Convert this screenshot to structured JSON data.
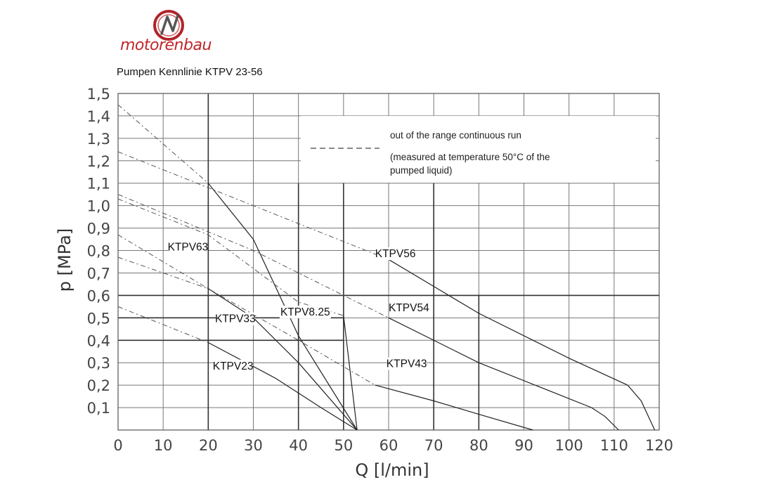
{
  "logo": {
    "text": "motorenbau",
    "tagline": ""
  },
  "chart_data": {
    "type": "line",
    "title": "Pumpen Kennlinie KTPV 23-56",
    "xlabel": "Q  [l/min]",
    "ylabel": "p  [MPa]",
    "xlim": [
      0,
      120
    ],
    "ylim": [
      0,
      1.5
    ],
    "x_ticks": [
      "0",
      "10",
      "20",
      "30",
      "40",
      "50",
      "60",
      "70",
      "80",
      "90",
      "100",
      "110",
      "120"
    ],
    "y_ticks": [
      "0,1",
      "0,2",
      "0,3",
      "0,4",
      "0,5",
      "0,6",
      "0,7",
      "0,8",
      "0,9",
      "1,0",
      "1,1",
      "1,2",
      "1,3",
      "1,4",
      "1,5"
    ],
    "grid": true,
    "legend": {
      "line_style": "dashed",
      "text1": "out of the range continuous run",
      "text2": "(measured at temperature 50°C of the",
      "text3": "pumped liquid)"
    },
    "series": [
      {
        "name": "KTPV23",
        "label_at": [
          25.5,
          0.27
        ],
        "dashed": [
          [
            0,
            0.55
          ],
          [
            20,
            0.39
          ]
        ],
        "solid": [
          [
            20,
            0.39
          ],
          [
            35,
            0.23
          ],
          [
            45,
            0.1
          ],
          [
            53,
            0.0
          ]
        ]
      },
      {
        "name": "KTPV33",
        "label_at": [
          26,
          0.48
        ],
        "dashed": [
          [
            0,
            0.77
          ],
          [
            20,
            0.63
          ]
        ],
        "solid": [
          [
            20,
            0.63
          ],
          [
            30,
            0.5
          ],
          [
            40,
            0.3
          ],
          [
            53,
            0.0
          ]
        ]
      },
      {
        "name": "KTPV63",
        "label_at": [
          15.5,
          0.8
        ],
        "dashed": [
          [
            0,
            1.45
          ],
          [
            20,
            1.1
          ]
        ],
        "solid": [
          [
            20,
            1.1
          ],
          [
            30,
            0.85
          ],
          [
            40,
            0.42
          ],
          [
            53,
            0.0
          ]
        ]
      },
      {
        "name": "KTPV8.25",
        "label_at": [
          41.5,
          0.51
        ],
        "dashed": [
          [
            0,
            1.03
          ],
          [
            20,
            0.87
          ],
          [
            40,
            0.57
          ],
          [
            50,
            0.51
          ]
        ],
        "solid": [
          [
            50,
            0.51
          ],
          [
            53,
            0.0
          ]
        ]
      },
      {
        "name": "KTPV43",
        "label_at": [
          64,
          0.28
        ],
        "dashed": [
          [
            0,
            0.87
          ],
          [
            20,
            0.63
          ],
          [
            40,
            0.4
          ],
          [
            57,
            0.2
          ]
        ],
        "solid": [
          [
            57,
            0.2
          ],
          [
            70,
            0.13
          ],
          [
            80,
            0.07
          ],
          [
            92,
            0.0
          ]
        ]
      },
      {
        "name": "KTPV54",
        "label_at": [
          64.5,
          0.53
        ],
        "dashed": [
          [
            0,
            1.05
          ],
          [
            30,
            0.8
          ],
          [
            60,
            0.5
          ]
        ],
        "solid": [
          [
            60,
            0.5
          ],
          [
            80,
            0.3
          ],
          [
            105,
            0.1
          ],
          [
            108,
            0.06
          ],
          [
            111,
            0.0
          ]
        ]
      },
      {
        "name": "KTPV56",
        "label_at": [
          61.5,
          0.77
        ],
        "dashed": [
          [
            0,
            1.24
          ],
          [
            30,
            1.0
          ],
          [
            60,
            0.76
          ]
        ],
        "solid": [
          [
            60,
            0.76
          ],
          [
            80,
            0.52
          ],
          [
            100,
            0.32
          ],
          [
            113,
            0.2
          ],
          [
            116,
            0.13
          ],
          [
            119,
            0.0
          ]
        ]
      }
    ]
  }
}
